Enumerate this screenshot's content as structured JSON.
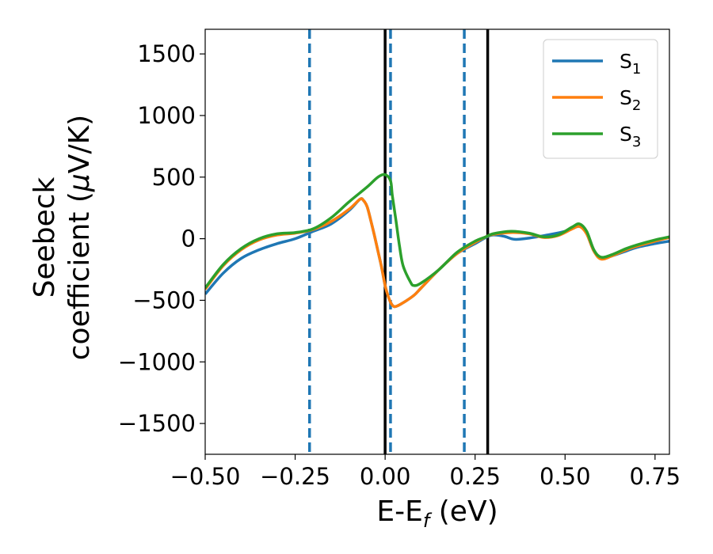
{
  "chart_data": {
    "type": "line",
    "xlabel": {
      "main": "E-E",
      "sub": "f",
      "suffix": " (eV)"
    },
    "ylabel": {
      "line1": "Seebeck",
      "line2_prefix": "coefficient  (",
      "mu": "μ",
      "line2_suffix": "V/K)"
    },
    "xlim": [
      -0.5,
      0.79
    ],
    "ylim": [
      -1750,
      1700
    ],
    "x_ticks": [
      -0.5,
      -0.25,
      0.0,
      0.25,
      0.5,
      0.75
    ],
    "x_tick_labels": [
      "−0.50",
      "−0.25",
      "0.00",
      "0.25",
      "0.50",
      "0.75"
    ],
    "y_ticks": [
      1500,
      1000,
      500,
      0,
      -500,
      -1000,
      -1500
    ],
    "y_tick_labels": [
      "1500",
      "1000",
      "500",
      "0",
      "−500",
      "−1000",
      "−1500"
    ],
    "grid": false,
    "legend_position": "top-right",
    "vlines_solid": {
      "color": "#000000",
      "x": [
        0.0,
        0.285
      ]
    },
    "vlines_dashed": {
      "color": "#1f77b4",
      "x": [
        -0.21,
        0.015,
        0.22
      ]
    },
    "series": [
      {
        "name": "S",
        "sub": "1",
        "color": "#1f77b4",
        "points": [
          [
            -0.5,
            -450
          ],
          [
            -0.45,
            -280
          ],
          [
            -0.4,
            -160
          ],
          [
            -0.35,
            -90
          ],
          [
            -0.3,
            -40
          ],
          [
            -0.25,
            0
          ],
          [
            -0.2,
            60
          ],
          [
            -0.15,
            120
          ],
          [
            -0.1,
            230
          ],
          [
            -0.07,
            320
          ],
          [
            -0.06,
            310
          ],
          [
            -0.05,
            260
          ],
          [
            -0.04,
            150
          ],
          [
            -0.03,
            30
          ],
          [
            -0.02,
            -100
          ],
          [
            -0.01,
            -230
          ],
          [
            0.0,
            -380
          ],
          [
            0.01,
            -480
          ],
          [
            0.02,
            -540
          ],
          [
            0.03,
            -550
          ],
          [
            0.05,
            -520
          ],
          [
            0.08,
            -460
          ],
          [
            0.1,
            -400
          ],
          [
            0.15,
            -250
          ],
          [
            0.2,
            -120
          ],
          [
            0.25,
            -40
          ],
          [
            0.28,
            10
          ],
          [
            0.3,
            30
          ],
          [
            0.33,
            20
          ],
          [
            0.36,
            -5
          ],
          [
            0.4,
            5
          ],
          [
            0.45,
            30
          ],
          [
            0.5,
            60
          ],
          [
            0.54,
            100
          ],
          [
            0.56,
            40
          ],
          [
            0.58,
            -100
          ],
          [
            0.6,
            -160
          ],
          [
            0.63,
            -140
          ],
          [
            0.67,
            -100
          ],
          [
            0.7,
            -70
          ],
          [
            0.75,
            -40
          ],
          [
            0.79,
            -20
          ]
        ]
      },
      {
        "name": "S",
        "sub": "2",
        "color": "#ff7f0e",
        "points": [
          [
            -0.5,
            -410
          ],
          [
            -0.45,
            -220
          ],
          [
            -0.4,
            -90
          ],
          [
            -0.35,
            -10
          ],
          [
            -0.3,
            30
          ],
          [
            -0.25,
            45
          ],
          [
            -0.2,
            75
          ],
          [
            -0.15,
            140
          ],
          [
            -0.1,
            240
          ],
          [
            -0.07,
            320
          ],
          [
            -0.06,
            310
          ],
          [
            -0.05,
            260
          ],
          [
            -0.04,
            150
          ],
          [
            -0.03,
            30
          ],
          [
            -0.02,
            -100
          ],
          [
            -0.01,
            -230
          ],
          [
            0.0,
            -380
          ],
          [
            0.01,
            -480
          ],
          [
            0.02,
            -540
          ],
          [
            0.03,
            -550
          ],
          [
            0.05,
            -520
          ],
          [
            0.08,
            -460
          ],
          [
            0.1,
            -400
          ],
          [
            0.15,
            -250
          ],
          [
            0.2,
            -120
          ],
          [
            0.25,
            -30
          ],
          [
            0.28,
            15
          ],
          [
            0.3,
            35
          ],
          [
            0.35,
            50
          ],
          [
            0.4,
            40
          ],
          [
            0.44,
            10
          ],
          [
            0.48,
            25
          ],
          [
            0.52,
            80
          ],
          [
            0.54,
            100
          ],
          [
            0.56,
            40
          ],
          [
            0.58,
            -100
          ],
          [
            0.6,
            -165
          ],
          [
            0.63,
            -140
          ],
          [
            0.67,
            -90
          ],
          [
            0.7,
            -60
          ],
          [
            0.75,
            -20
          ],
          [
            0.79,
            10
          ]
        ]
      },
      {
        "name": "S",
        "sub": "3",
        "color": "#2ca02c",
        "points": [
          [
            -0.5,
            -400
          ],
          [
            -0.45,
            -210
          ],
          [
            -0.4,
            -80
          ],
          [
            -0.35,
            0
          ],
          [
            -0.3,
            40
          ],
          [
            -0.25,
            50
          ],
          [
            -0.2,
            80
          ],
          [
            -0.15,
            170
          ],
          [
            -0.1,
            300
          ],
          [
            -0.05,
            420
          ],
          [
            -0.02,
            500
          ],
          [
            0.0,
            520
          ],
          [
            0.015,
            470
          ],
          [
            0.02,
            350
          ],
          [
            0.03,
            150
          ],
          [
            0.04,
            -60
          ],
          [
            0.05,
            -220
          ],
          [
            0.07,
            -350
          ],
          [
            0.08,
            -380
          ],
          [
            0.1,
            -360
          ],
          [
            0.15,
            -250
          ],
          [
            0.2,
            -110
          ],
          [
            0.25,
            -20
          ],
          [
            0.28,
            15
          ],
          [
            0.3,
            40
          ],
          [
            0.35,
            60
          ],
          [
            0.4,
            45
          ],
          [
            0.44,
            15
          ],
          [
            0.48,
            30
          ],
          [
            0.52,
            95
          ],
          [
            0.54,
            120
          ],
          [
            0.56,
            60
          ],
          [
            0.58,
            -90
          ],
          [
            0.6,
            -150
          ],
          [
            0.63,
            -130
          ],
          [
            0.67,
            -80
          ],
          [
            0.7,
            -50
          ],
          [
            0.75,
            -10
          ],
          [
            0.79,
            15
          ]
        ]
      }
    ]
  }
}
